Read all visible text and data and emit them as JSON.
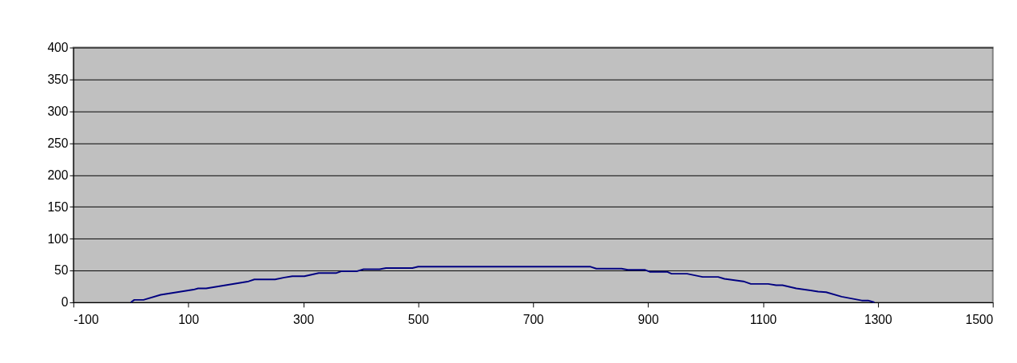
{
  "chart_data": {
    "type": "line",
    "x": [
      0,
      6,
      22,
      52,
      109,
      117,
      131,
      205,
      215,
      251,
      267,
      281,
      302,
      327,
      357,
      367,
      394,
      405,
      433,
      444,
      490,
      500,
      800,
      810,
      854,
      865,
      895,
      903,
      933,
      941,
      968,
      995,
      1022,
      1033,
      1066,
      1079,
      1109,
      1123,
      1134,
      1158,
      1196,
      1210,
      1237,
      1272,
      1283,
      1294
    ],
    "series": [
      {
        "color": "#000080",
        "values": [
          0,
          4,
          4,
          12,
          20,
          22,
          22,
          33,
          36,
          36,
          39,
          41,
          41,
          46,
          46,
          49,
          49,
          52,
          52,
          54,
          54,
          56,
          56,
          53,
          53,
          51,
          51,
          48,
          48,
          45,
          45,
          40,
          40,
          37,
          33,
          29,
          29,
          27,
          27,
          22,
          17,
          16,
          9,
          3,
          3,
          0
        ]
      }
    ],
    "xlim": [
      -100,
      1500
    ],
    "xticks": [
      -100,
      100,
      300,
      500,
      700,
      900,
      1100,
      1300,
      1500
    ],
    "ylim": [
      0,
      400
    ],
    "yticks": [
      0,
      50,
      100,
      150,
      200,
      250,
      300,
      350,
      400
    ],
    "grid": "y",
    "marker": "none",
    "line_style": "solid"
  }
}
